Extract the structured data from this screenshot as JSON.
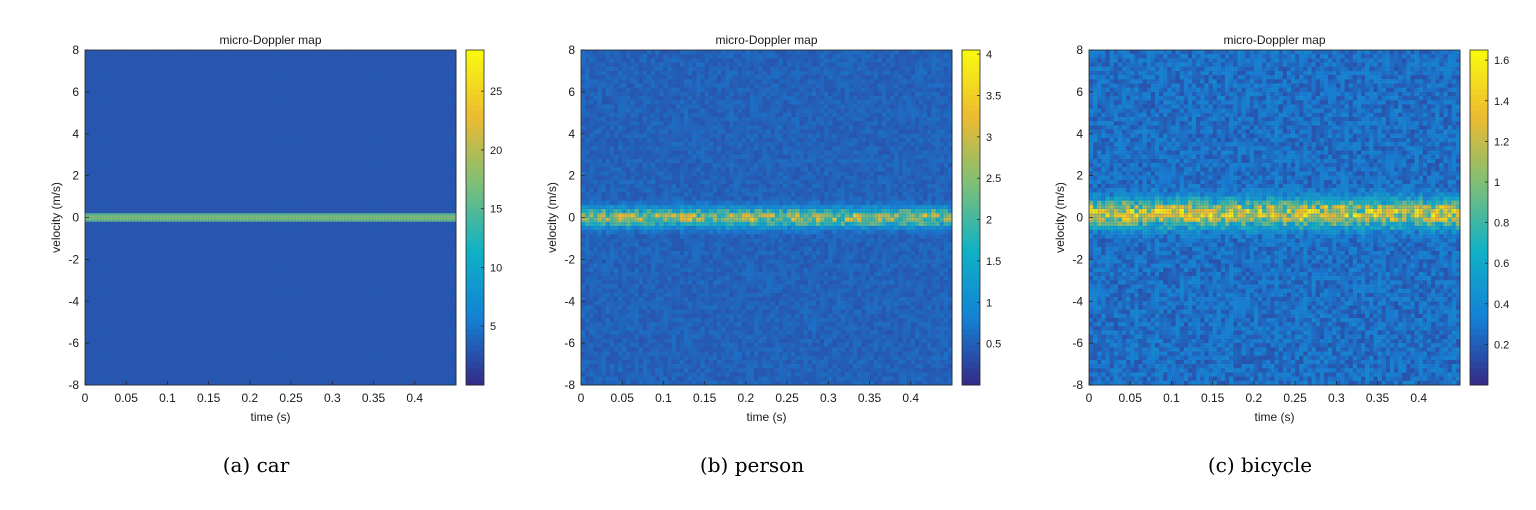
{
  "chart_data": [
    {
      "type": "heatmap",
      "title": "micro-Doppler map",
      "xlabel": "time (s)",
      "ylabel": "velocity (m/s)",
      "xlim": [
        0,
        0.45
      ],
      "ylim": [
        -8,
        8
      ],
      "xticks": [
        "0",
        "0.05",
        "0.1",
        "0.15",
        "0.2",
        "0.25",
        "0.3",
        "0.35",
        "0.4"
      ],
      "yticks": [
        "8",
        "6",
        "4",
        "2",
        "0",
        "-2",
        "-4",
        "-6",
        "-8"
      ],
      "colorbar": {
        "min": 0,
        "max": 28.5,
        "ticks": [
          "25",
          "20",
          "15",
          "10",
          "5"
        ]
      },
      "background_level": 3.0,
      "signal": {
        "description_velocity_m_s": 0.0,
        "peak_level": 28.5,
        "spread_m_s": 0.0,
        "noise": 0.0
      },
      "caption": "(a)  car"
    },
    {
      "type": "heatmap",
      "title": "micro-Doppler map",
      "xlabel": "time (s)",
      "ylabel": "velocity (m/s)",
      "xlim": [
        0,
        0.45
      ],
      "ylim": [
        -8,
        8
      ],
      "xticks": [
        "0",
        "0.05",
        "0.1",
        "0.15",
        "0.2",
        "0.25",
        "0.3",
        "0.35",
        "0.4"
      ],
      "yticks": [
        "8",
        "6",
        "4",
        "2",
        "0",
        "-2",
        "-4",
        "-6",
        "-8"
      ],
      "colorbar": {
        "min": 0,
        "max": 4.05,
        "ticks": [
          "4",
          "3.5",
          "3",
          "2.5",
          "2",
          "1.5",
          "1",
          "0.5"
        ]
      },
      "background_level": 0.55,
      "signal": {
        "description_velocity_m_s": 0.0,
        "peak_level": 3.0,
        "spread_m_s": 0.3,
        "noise": 0.25
      },
      "caption": "(b)  person"
    },
    {
      "type": "heatmap",
      "title": "micro-Doppler map",
      "xlabel": "time (s)",
      "ylabel": "velocity (m/s)",
      "xlim": [
        0,
        0.45
      ],
      "ylim": [
        -8,
        8
      ],
      "xticks": [
        "0",
        "0.05",
        "0.1",
        "0.15",
        "0.2",
        "0.25",
        "0.3",
        "0.35",
        "0.4"
      ],
      "yticks": [
        "8",
        "6",
        "4",
        "2",
        "0",
        "-2",
        "-4",
        "-6",
        "-8"
      ],
      "colorbar": {
        "min": 0,
        "max": 1.65,
        "ticks": [
          "1.6",
          "1.4",
          "1.2",
          "1",
          "0.8",
          "0.6",
          "0.4",
          "0.2"
        ]
      },
      "background_level": 0.28,
      "signal": {
        "description_velocity_m_s": 0.2,
        "peak_level": 1.4,
        "spread_m_s": 0.45,
        "noise": 0.45
      },
      "caption": "(c)  bicycle"
    }
  ]
}
